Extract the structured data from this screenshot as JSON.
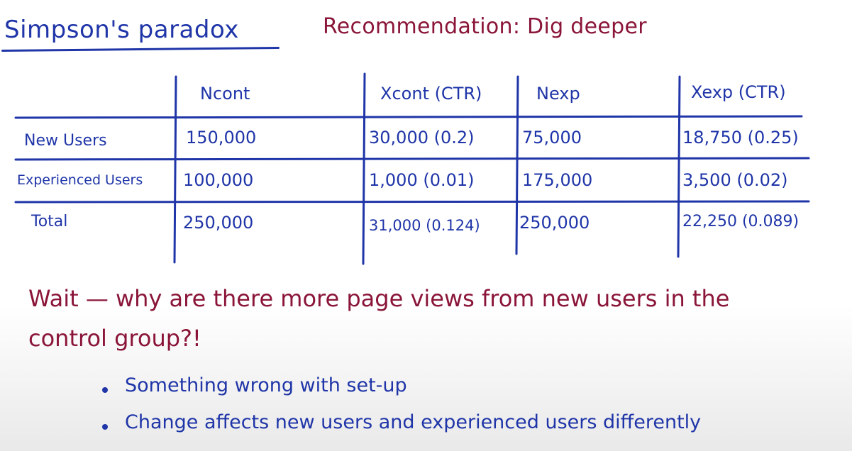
{
  "title": "Simpson's paradox",
  "recommendation": "Recommendation: Dig deeper",
  "table": {
    "headers": [
      "Ncont",
      "Xcont (CTR)",
      "Nexp",
      "Xexp (CTR)"
    ],
    "rows": [
      {
        "label": "New Users",
        "cells": [
          "150,000",
          "30,000 (0.2)",
          "75,000",
          "18,750 (0.25)"
        ]
      },
      {
        "label": "Experienced Users",
        "cells": [
          "100,000",
          "1,000 (0.01)",
          "175,000",
          "3,500 (0.02)"
        ]
      },
      {
        "label": "Total",
        "cells": [
          "250,000",
          "31,000 (0.124)",
          "250,000",
          "22,250 (0.089)"
        ]
      }
    ]
  },
  "note": {
    "line1": "Wait — why are there more page views from new users in the",
    "line2": "control group?!"
  },
  "bullets": [
    "Something wrong with set-up",
    "Change affects new users and experienced users differently"
  ],
  "colors": {
    "blue_ink": "#1f35a8",
    "red_ink": "#8a1538"
  }
}
